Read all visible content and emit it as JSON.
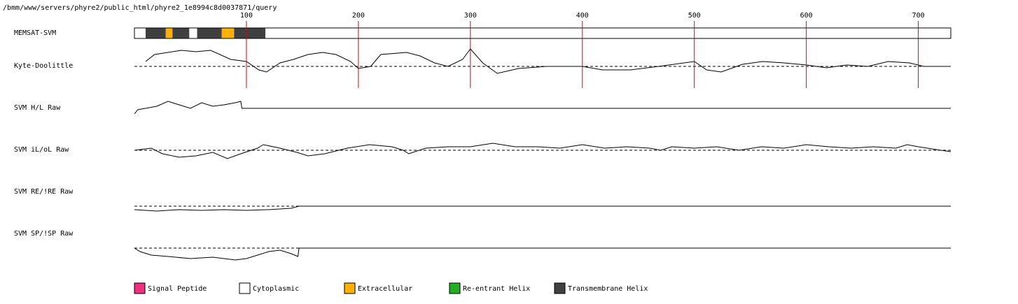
{
  "header": {
    "path": "/bmm/www/servers/phyre2/public_html/phyre2_1e8994c8d0037871/query"
  },
  "chart_data": {
    "type": "line",
    "xlim": [
      0,
      729
    ],
    "xticks": [
      100,
      200,
      300,
      400,
      500,
      600,
      700
    ],
    "tick_color": "#dd0000",
    "topology": {
      "label": "MEMSAT-SVM",
      "segments": [
        {
          "start": 0,
          "end": 10,
          "color": "#ffffff"
        },
        {
          "start": 10,
          "end": 28,
          "color": "#404040"
        },
        {
          "start": 28,
          "end": 34,
          "color": "#ffb000"
        },
        {
          "start": 34,
          "end": 49,
          "color": "#404040"
        },
        {
          "start": 49,
          "end": 56,
          "color": "#ffffff"
        },
        {
          "start": 56,
          "end": 78,
          "color": "#404040"
        },
        {
          "start": 78,
          "end": 89,
          "color": "#ffb000"
        },
        {
          "start": 89,
          "end": 117,
          "color": "#404040"
        },
        {
          "start": 117,
          "end": 729,
          "color": "#ffffff"
        }
      ]
    },
    "series": [
      {
        "name": "Kyte-Doolittle",
        "dashed_baseline": true,
        "x": [
          10,
          18,
          30,
          42,
          55,
          68,
          86,
          100,
          111,
          118,
          130,
          142,
          155,
          168,
          180,
          193,
          200,
          211,
          220,
          243,
          255,
          268,
          280,
          293,
          300,
          311,
          324,
          343,
          368,
          400,
          418,
          443,
          468,
          500,
          511,
          524,
          543,
          561,
          580,
          600,
          618,
          636,
          655,
          673,
          692,
          705,
          729
        ],
        "values": [
          7,
          17,
          20,
          23,
          21,
          23,
          10,
          7,
          -5,
          -8,
          5,
          10,
          17,
          20,
          17,
          7,
          -3,
          0,
          17,
          20,
          15,
          5,
          0,
          10,
          25,
          5,
          -10,
          -3,
          0,
          0,
          -5,
          -5,
          0,
          7,
          -5,
          -8,
          3,
          7,
          5,
          2,
          -2,
          2,
          0,
          7,
          5,
          0,
          0
        ]
      },
      {
        "name": "SVM H/L Raw",
        "dashed_baseline": false,
        "x": [
          0,
          3,
          10,
          20,
          30,
          40,
          50,
          60,
          70,
          80,
          90,
          95,
          96,
          729
        ],
        "values": [
          -8,
          -2,
          0,
          3,
          10,
          5,
          0,
          8,
          3,
          5,
          8,
          10,
          0,
          0
        ]
      },
      {
        "name": "SVM iL/oL Raw",
        "dashed_baseline": true,
        "x": [
          0,
          15,
          25,
          40,
          55,
          70,
          83,
          95,
          110,
          115,
          130,
          145,
          155,
          170,
          190,
          210,
          230,
          240,
          245,
          260,
          280,
          300,
          320,
          340,
          360,
          380,
          400,
          420,
          440,
          460,
          470,
          480,
          500,
          520,
          540,
          560,
          580,
          600,
          620,
          640,
          660,
          680,
          690,
          700,
          720,
          729
        ],
        "values": [
          0,
          3,
          -5,
          -10,
          -8,
          -3,
          -12,
          -5,
          3,
          8,
          3,
          -3,
          -8,
          -5,
          3,
          8,
          5,
          0,
          -5,
          3,
          5,
          5,
          10,
          5,
          5,
          3,
          8,
          3,
          5,
          3,
          0,
          5,
          3,
          5,
          0,
          5,
          3,
          8,
          5,
          3,
          5,
          3,
          8,
          5,
          0,
          -2
        ]
      },
      {
        "name": "SVM RE/!RE Raw",
        "dashed_baseline": true,
        "x": [
          0,
          20,
          40,
          60,
          80,
          100,
          120,
          140,
          147,
          729
        ],
        "values": [
          -5,
          -7,
          -5,
          -6,
          -5,
          -6,
          -5,
          -3,
          0,
          0
        ]
      },
      {
        "name": "SVM SP/!SP Raw",
        "dashed_baseline": true,
        "x": [
          0,
          5,
          15,
          30,
          50,
          70,
          90,
          100,
          110,
          120,
          130,
          140,
          146,
          147,
          729
        ],
        "values": [
          0,
          -5,
          -10,
          -12,
          -15,
          -13,
          -17,
          -15,
          -10,
          -5,
          -3,
          -8,
          -12,
          0,
          0
        ]
      }
    ],
    "legend": [
      {
        "name": "Signal Peptide",
        "color": "#f0307f"
      },
      {
        "name": "Cytoplasmic",
        "color": "#ffffff"
      },
      {
        "name": "Extracellular",
        "color": "#ffb000"
      },
      {
        "name": "Re-entrant Helix",
        "color": "#22b022"
      },
      {
        "name": "Transmembrane Helix",
        "color": "#404040"
      }
    ]
  }
}
